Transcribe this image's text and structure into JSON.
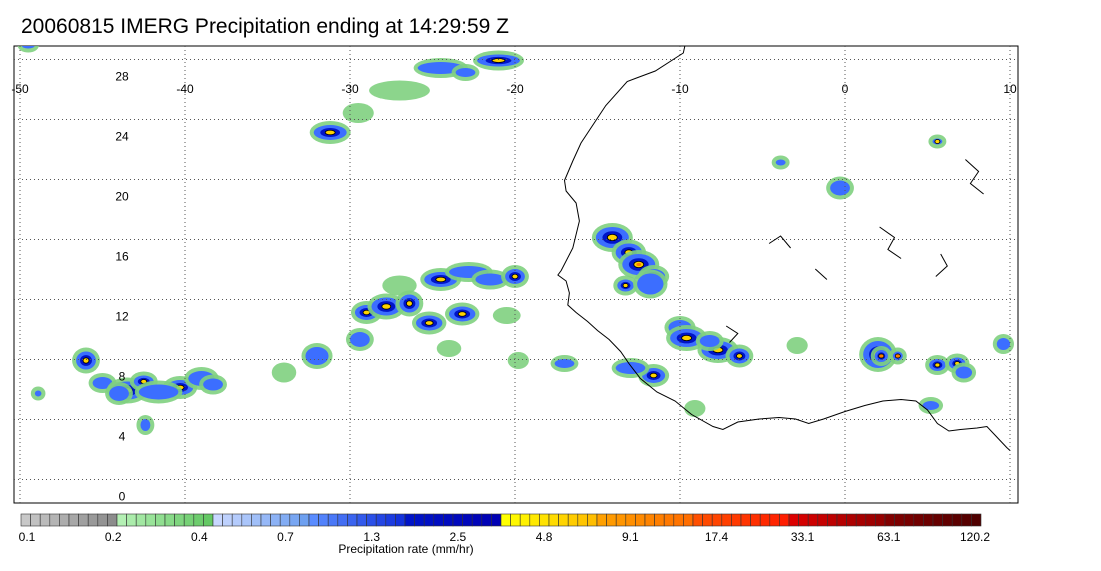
{
  "title": "20060815 IMERG Precipitation ending at 14:29:59 Z",
  "map": {
    "lon_range": [
      -50,
      10
    ],
    "lat_range": [
      -1,
      30
    ],
    "lon_ticks": [
      -50,
      -40,
      -30,
      -20,
      -10,
      0,
      10
    ],
    "lat_ticks": [
      0,
      4,
      8,
      12,
      16,
      20,
      24,
      28
    ],
    "lon_tick_labels": [
      "-50",
      "-40",
      "-30",
      "-20",
      "-10",
      "0",
      "10"
    ],
    "lat_tick_labels": [
      "0",
      "4",
      "8",
      "12",
      "16",
      "20",
      "24",
      "28"
    ],
    "grid": true,
    "coastline_color": "#000000",
    "grid_color": "#555555"
  },
  "colorbar": {
    "label": "Precipitation rate (mm/hr)",
    "tick_labels": [
      "0.1",
      "0.2",
      "0.4",
      "0.7",
      "1.3",
      "2.5",
      "4.8",
      "9.1",
      "17.4",
      "33.1",
      "63.1",
      "120.2"
    ],
    "groups": [
      {
        "from": "#c8c8c8",
        "to": "#8c8c8c"
      },
      {
        "from": "#b4f0b4",
        "to": "#64c864"
      },
      {
        "from": "#c8d7ff",
        "to": "#6ea0f0"
      },
      {
        "from": "#5a8cff",
        "to": "#1432dc"
      },
      {
        "from": "#0014c8",
        "to": "#0000b4"
      },
      {
        "from": "#ffff00",
        "to": "#ffbe00"
      },
      {
        "from": "#ffa000",
        "to": "#ff6e00"
      },
      {
        "from": "#ff5000",
        "to": "#ff1e00"
      },
      {
        "from": "#dc0000",
        "to": "#960000"
      },
      {
        "from": "#820000",
        "to": "#500000"
      }
    ]
  },
  "precip_palette": {
    "light": "#7fd07f",
    "moderate": "#3c6eff",
    "heavy": "#0014c8",
    "core": "#ffd200",
    "extreme": "#ff7a00"
  }
}
